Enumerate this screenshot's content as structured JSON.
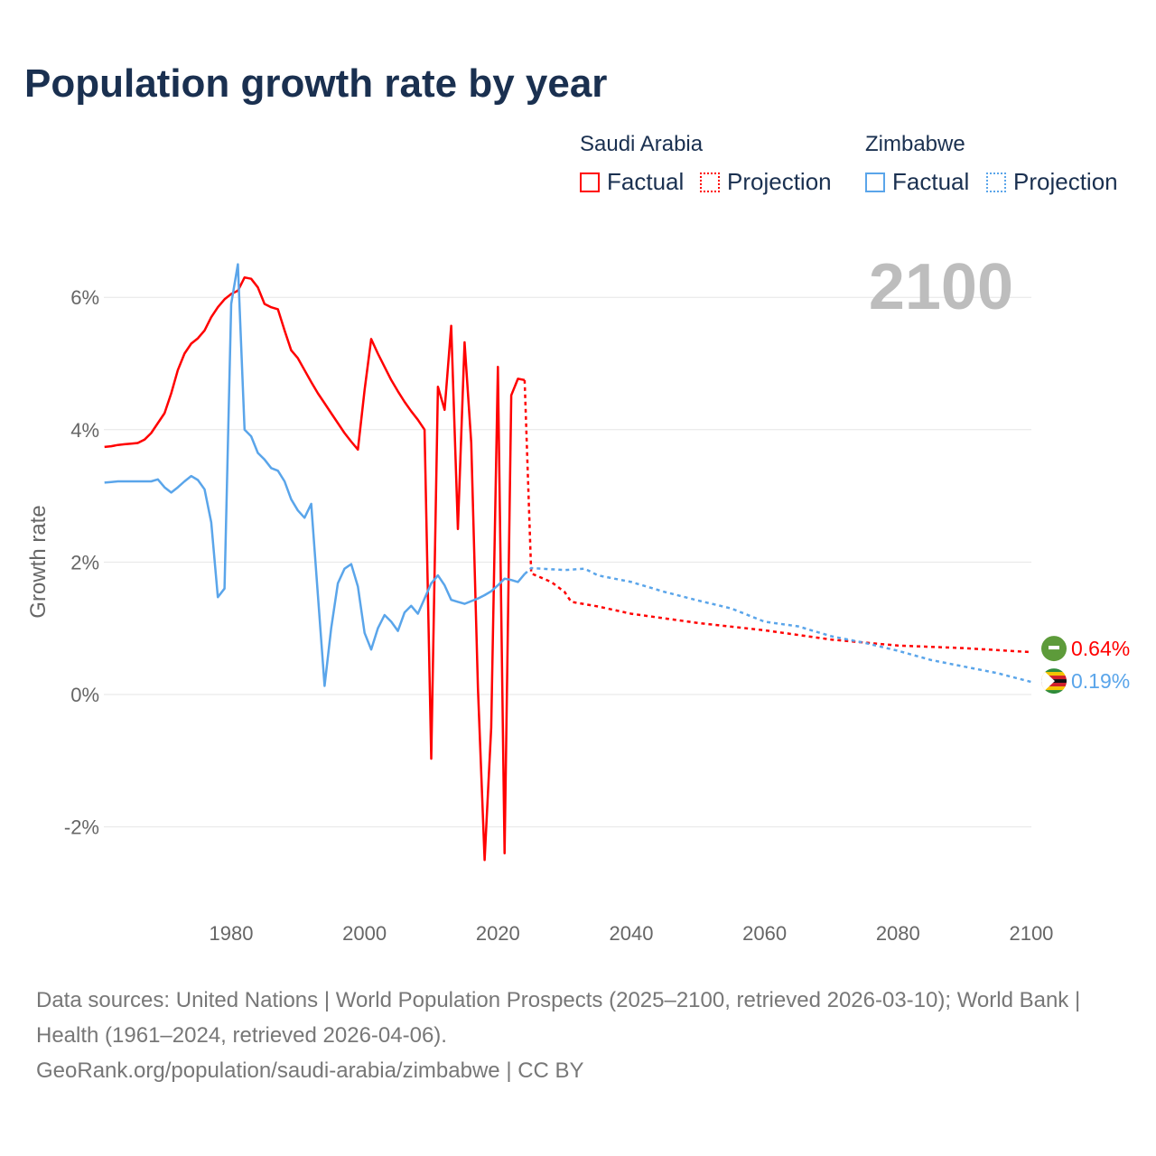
{
  "title": "Population growth rate by year",
  "legend": {
    "groups": [
      {
        "name": "Saudi Arabia",
        "color": "#ff0000",
        "factual": "Factual",
        "projection": "Projection"
      },
      {
        "name": "Zimbabwe",
        "color": "#5aa5ea",
        "factual": "Factual",
        "projection": "Projection"
      }
    ]
  },
  "year_label": "2100",
  "footer": {
    "line1": "Data sources: United Nations | World Population Prospects (2025–2100, retrieved 2026-03-10); World Bank | Health (1961–2024, retrieved 2026-04-06).",
    "line2": "GeoRank.org/population/saudi-arabia/zimbabwe | CC BY"
  },
  "chart_data": {
    "type": "line",
    "title": "Population growth rate by year",
    "xlabel": "",
    "ylabel": "Growth rate",
    "xlim": [
      1961,
      2100
    ],
    "ylim": [
      -3,
      7
    ],
    "xticks": [
      1980,
      2000,
      2020,
      2040,
      2060,
      2080,
      2100
    ],
    "yticks": [
      {
        "v": -2,
        "label": "-2%"
      },
      {
        "v": 0,
        "label": "0%"
      },
      {
        "v": 2,
        "label": "2%"
      },
      {
        "v": 4,
        "label": "4%"
      },
      {
        "v": 6,
        "label": "6%"
      }
    ],
    "grid": true,
    "series": [
      {
        "name": "Saudi Arabia",
        "color": "#ff0000",
        "end_label": "0.64%",
        "factual": {
          "x_start": 1961,
          "values": [
            3.74,
            3.75,
            3.77,
            3.78,
            3.79,
            3.8,
            3.85,
            3.95,
            4.1,
            4.25,
            4.55,
            4.9,
            5.15,
            5.3,
            5.38,
            5.5,
            5.7,
            5.85,
            5.97,
            6.05,
            6.1,
            6.3,
            6.28,
            6.15,
            5.9,
            5.85,
            5.82,
            5.5,
            5.2,
            5.08,
            4.9,
            4.72,
            4.55,
            4.4,
            4.25,
            4.1,
            3.95,
            3.82,
            3.7,
            4.6,
            5.37,
            5.15,
            4.95,
            4.75,
            4.58,
            4.42,
            4.28,
            4.15,
            4.0,
            -0.97,
            4.65,
            4.3,
            5.57,
            2.5,
            5.32,
            3.8,
            0.1,
            -2.5,
            -0.5,
            4.95,
            -2.4,
            4.52,
            4.77,
            4.75
          ]
        },
        "projection": {
          "x": [
            2024,
            2025,
            2028,
            2030,
            2031,
            2035,
            2040,
            2050,
            2060,
            2070,
            2080,
            2090,
            2100
          ],
          "values": [
            4.75,
            1.83,
            1.7,
            1.55,
            1.4,
            1.33,
            1.22,
            1.08,
            0.97,
            0.83,
            0.74,
            0.7,
            0.64
          ]
        }
      },
      {
        "name": "Zimbabwe",
        "color": "#5aa5ea",
        "end_label": "0.19%",
        "factual": {
          "x_start": 1961,
          "values": [
            3.2,
            3.21,
            3.22,
            3.22,
            3.22,
            3.22,
            3.22,
            3.22,
            3.25,
            3.13,
            3.05,
            3.13,
            3.22,
            3.3,
            3.24,
            3.1,
            2.6,
            1.47,
            1.6,
            5.9,
            6.5,
            4.0,
            3.9,
            3.65,
            3.55,
            3.42,
            3.38,
            3.22,
            2.95,
            2.78,
            2.67,
            2.88,
            1.5,
            0.13,
            1.0,
            1.68,
            1.9,
            1.97,
            1.63,
            0.93,
            0.68,
            1.0,
            1.2,
            1.1,
            0.96,
            1.24,
            1.34,
            1.22,
            1.45,
            1.68,
            1.8,
            1.65,
            1.43,
            1.4,
            1.37,
            1.41,
            1.45,
            1.5,
            1.56,
            1.65,
            1.75,
            1.73,
            1.7,
            1.82
          ]
        },
        "projection": {
          "x": [
            2024,
            2025,
            2030,
            2033,
            2035,
            2040,
            2045,
            2050,
            2055,
            2060,
            2065,
            2070,
            2075,
            2080,
            2085,
            2090,
            2095,
            2100
          ],
          "values": [
            1.82,
            1.91,
            1.88,
            1.9,
            1.8,
            1.7,
            1.55,
            1.42,
            1.3,
            1.1,
            1.03,
            0.88,
            0.78,
            0.66,
            0.52,
            0.42,
            0.32,
            0.19
          ]
        }
      }
    ]
  }
}
